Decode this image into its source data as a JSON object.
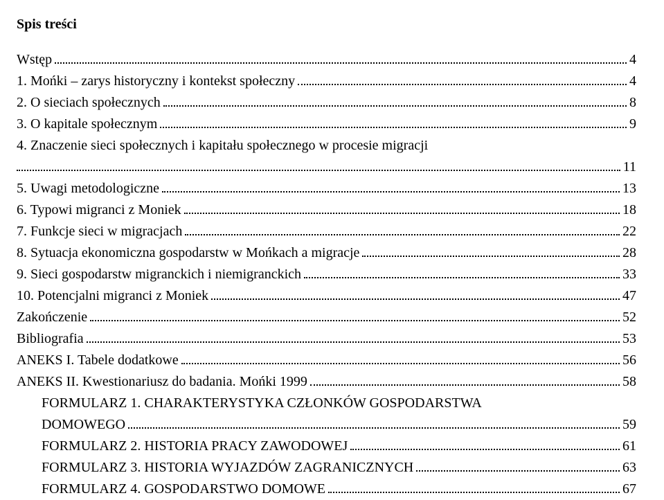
{
  "title": "Spis treści",
  "entries": [
    {
      "label": "Wstęp",
      "page": "4",
      "indent": false
    },
    {
      "label": "1. Mońki – zarys historyczny i kontekst społeczny",
      "page": "4",
      "indent": false
    },
    {
      "label": "2. O sieciach społecznych",
      "page": "8",
      "indent": false
    },
    {
      "label": "3. O kapitale społecznym",
      "page": "9",
      "indent": false
    },
    {
      "label": "4. Znaczenie sieci społecznych i kapitału społecznego w procesie migracji",
      "page": "11",
      "indent": false
    },
    {
      "label": "5. Uwagi metodologiczne",
      "page": "13",
      "indent": false
    },
    {
      "label": "6. Typowi migranci z Moniek",
      "page": "18",
      "indent": false
    },
    {
      "label": "7. Funkcje sieci w migracjach",
      "page": "22",
      "indent": false
    },
    {
      "label": "8. Sytuacja ekonomiczna gospodarstw w Mońkach a migracje",
      "page": "28",
      "indent": false
    },
    {
      "label": "9. Sieci gospodarstw migranckich i niemigranckich",
      "page": "33",
      "indent": false
    },
    {
      "label": "10. Potencjalni migranci z Moniek",
      "page": "47",
      "indent": false
    },
    {
      "label": "Zakończenie",
      "page": "52",
      "indent": false
    },
    {
      "label": "Bibliografia",
      "page": "53",
      "indent": false
    },
    {
      "label": "ANEKS I. Tabele dodatkowe",
      "page": "56",
      "indent": false
    },
    {
      "label": "ANEKS II. Kwestionariusz do badania. Mońki 1999",
      "page": "58",
      "indent": false
    },
    {
      "label": "FORMULARZ 1. CHARAKTERYSTYKA CZŁONKÓW GOSPODARSTWA DOMOWEGO",
      "page": "59",
      "indent": true
    },
    {
      "label": "FORMULARZ 2. HISTORIA PRACY ZAWODOWEJ",
      "page": "61",
      "indent": true
    },
    {
      "label": "FORMULARZ 3. HISTORIA WYJAZDÓW ZAGRANICZNYCH",
      "page": "63",
      "indent": true
    },
    {
      "label": "FORMULARZ 4. GOSPODARSTWO DOMOWE",
      "page": "67",
      "indent": true
    }
  ],
  "colors": {
    "text": "#000000",
    "background": "#ffffff"
  },
  "typography": {
    "font_family": "Times New Roman",
    "font_size_pt": 15,
    "title_weight": "bold"
  }
}
